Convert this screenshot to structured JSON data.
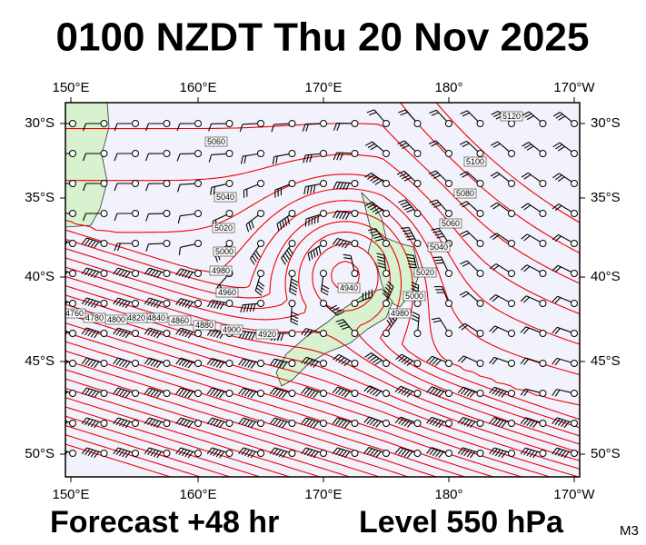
{
  "title": "0100 NZDT Thu 20 Nov 2025",
  "lon_labels": [
    "150°E",
    "160°E",
    "170°E",
    "180°",
    "170°W"
  ],
  "lat_labels": [
    "30°S",
    "35°S",
    "40°S",
    "45°S",
    "50°S"
  ],
  "contour_labels": [
    "5120",
    "5100",
    "5080",
    "5060",
    "5040",
    "5020",
    "5000",
    "4980",
    "5060",
    "5040",
    "5020",
    "5000",
    "4980",
    "4960",
    "4940",
    "4920",
    "4900",
    "4880",
    "4860",
    "4840",
    "4820",
    "4800",
    "4780",
    "4760"
  ],
  "footer": {
    "forecast": "Forecast +48 hr",
    "level": "Level 550 hPa",
    "model": "M3"
  }
}
